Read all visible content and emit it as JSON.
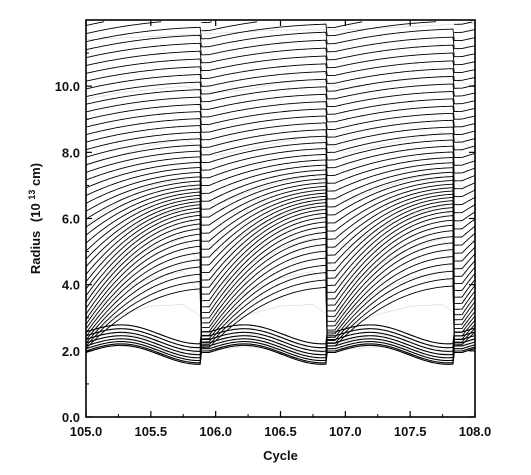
{
  "chart_data": {
    "type": "line",
    "title": "",
    "xlabel": "Cycle",
    "ylabel_main": "Radius",
    "ylabel_paren_open": "(10",
    "ylabel_exponent": "13",
    "ylabel_unit": "cm)",
    "xlim": [
      105.0,
      108.0
    ],
    "ylim": [
      0.0,
      12.0
    ],
    "x_ticks": [
      105.0,
      105.5,
      106.0,
      106.5,
      107.0,
      107.5,
      108.0
    ],
    "x_tick_labels": [
      "105.0",
      "105.5",
      "106.0",
      "106.5",
      "107.0",
      "107.5",
      "108.0"
    ],
    "y_ticks": [
      0.0,
      2.0,
      4.0,
      6.0,
      8.0,
      10.0
    ],
    "y_tick_labels": [
      "0.0",
      "2.0",
      "4.0",
      "6.0",
      "8.0",
      "10.0"
    ],
    "grid": false,
    "legend": "none",
    "series_count": 60,
    "shock_cycles": [
      105.0,
      105.95,
      106.92,
      107.9
    ],
    "pulsation_period": 0.97,
    "series": [
      {
        "x": [
          105.0,
          105.25,
          105.5,
          105.75,
          106.0,
          106.25,
          106.5,
          106.75,
          107.0,
          107.25,
          107.5,
          107.75,
          108.0
        ],
        "y": [
          2.1,
          2.15,
          2.05,
          1.9,
          2.05,
          2.12,
          2.05,
          1.9,
          2.05,
          2.12,
          2.05,
          1.9,
          2.1
        ]
      },
      {
        "x": [
          105.0,
          105.25,
          105.5,
          105.75,
          106.0,
          106.25,
          106.5,
          106.75,
          107.0,
          107.25,
          107.5,
          107.75,
          108.0
        ],
        "y": [
          2.4,
          2.55,
          2.35,
          2.0,
          2.3,
          2.5,
          2.4,
          2.0,
          2.3,
          2.5,
          2.35,
          2.0,
          2.4
        ]
      },
      {
        "x": [
          105.0,
          105.25,
          105.5,
          105.75,
          106.0,
          106.25,
          106.5,
          106.75,
          107.0,
          107.25,
          107.5,
          107.75,
          108.0
        ],
        "y": [
          2.6,
          3.1,
          3.35,
          3.4,
          2.7,
          3.1,
          3.35,
          3.4,
          2.7,
          3.1,
          3.35,
          3.4,
          2.7
        ]
      },
      {
        "x": [
          105.0,
          105.25,
          105.5,
          105.75,
          106.0,
          106.25,
          106.5,
          106.75,
          107.0,
          107.25,
          107.5,
          107.75,
          108.0
        ],
        "y": [
          3.0,
          3.8,
          4.2,
          4.4,
          3.1,
          3.8,
          4.2,
          4.4,
          3.1,
          3.8,
          4.2,
          4.4,
          3.1
        ]
      },
      {
        "x": [
          105.0,
          105.25,
          105.5,
          105.75,
          106.0,
          106.25,
          106.5,
          106.75,
          107.0,
          107.25,
          107.5,
          107.75,
          108.0
        ],
        "y": [
          3.6,
          4.6,
          5.1,
          5.4,
          3.9,
          4.6,
          5.1,
          5.4,
          3.9,
          4.6,
          5.1,
          5.4,
          3.9
        ]
      },
      {
        "x": [
          105.0,
          105.25,
          105.5,
          105.75,
          106.0,
          106.25,
          106.5,
          106.75,
          107.0,
          107.25,
          107.5,
          107.75,
          108.0
        ],
        "y": [
          4.6,
          5.5,
          6.0,
          6.3,
          5.0,
          5.6,
          6.1,
          6.4,
          5.1,
          5.7,
          6.1,
          6.4,
          5.2
        ]
      },
      {
        "x": [
          105.0,
          105.25,
          105.5,
          105.75,
          106.0,
          106.25,
          106.5,
          106.75,
          107.0,
          107.25,
          107.5,
          107.75,
          108.0
        ],
        "y": [
          5.8,
          6.5,
          7.0,
          7.2,
          6.4,
          6.8,
          7.1,
          7.3,
          6.5,
          6.9,
          7.2,
          7.4,
          6.6
        ]
      },
      {
        "x": [
          105.0,
          105.25,
          105.5,
          105.75,
          106.0,
          106.25,
          106.5,
          106.75,
          107.0,
          107.25,
          107.5,
          107.75,
          108.0
        ],
        "y": [
          7.6,
          7.9,
          8.2,
          8.4,
          7.9,
          8.1,
          8.3,
          8.5,
          8.0,
          8.2,
          8.4,
          8.6,
          8.1
        ]
      },
      {
        "x": [
          105.0,
          105.25,
          105.5,
          105.75,
          106.0,
          106.25,
          106.5,
          106.75,
          107.0,
          107.25,
          107.5,
          107.75,
          108.0
        ],
        "y": [
          9.6,
          9.8,
          9.9,
          10.0,
          9.8,
          9.9,
          10.1,
          10.2,
          9.9,
          10.1,
          10.2,
          10.3,
          10.0
        ]
      },
      {
        "x": [
          105.0,
          105.5,
          106.0,
          106.5,
          107.0,
          107.5,
          108.0
        ],
        "y": [
          11.4,
          11.5,
          11.6,
          11.7,
          11.7,
          11.8,
          11.9
        ]
      }
    ]
  }
}
